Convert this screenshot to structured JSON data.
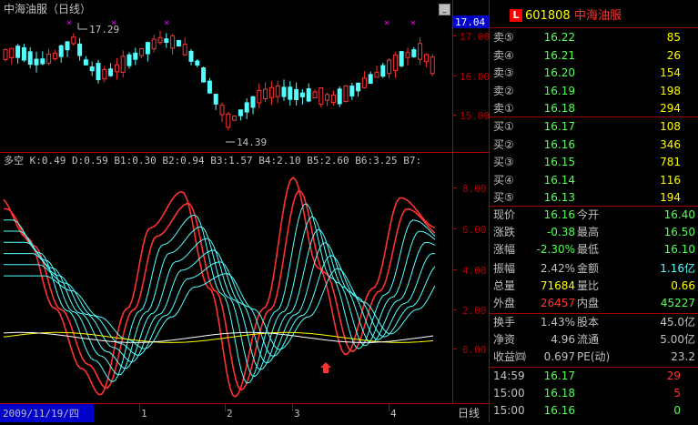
{
  "chart": {
    "title": "中海油服（日线）",
    "current_price_box": "17.04",
    "high_marker": "17.29",
    "low_marker": "14.39",
    "price_ticks": [
      "17.00",
      "16.00",
      "15.00"
    ],
    "indicator_line": "多空 K:0.49 D:0.59 B1:0.30 B2:0.94 B3:1.57 B4:2.10 B5:2.60 B6:3.25 B7:",
    "indicator_ticks": [
      "8.00",
      "6.00",
      "4.00",
      "2.00",
      "0.00"
    ],
    "date_label": "2009/11/19/四",
    "period_label": "日线",
    "month_ticks": [
      "1",
      "2",
      "3",
      "4"
    ],
    "colors": {
      "up": "#ff3232",
      "down": "#54ffff",
      "axis": "#b00000",
      "yellow": "#ffff00",
      "white": "#ffffff",
      "magenta": "#ff00ff",
      "blue": "#0000c8"
    }
  },
  "panel": {
    "logo": "L",
    "code": "601808",
    "name": "中海油服",
    "asks": [
      {
        "label": "卖⑤",
        "price": "16.22",
        "vol": "85"
      },
      {
        "label": "卖④",
        "price": "16.21",
        "vol": "26"
      },
      {
        "label": "卖③",
        "price": "16.20",
        "vol": "154"
      },
      {
        "label": "卖②",
        "price": "16.19",
        "vol": "198"
      },
      {
        "label": "卖①",
        "price": "16.18",
        "vol": "294"
      }
    ],
    "bids": [
      {
        "label": "买①",
        "price": "16.17",
        "vol": "108"
      },
      {
        "label": "买②",
        "price": "16.16",
        "vol": "346"
      },
      {
        "label": "买③",
        "price": "16.15",
        "vol": "781"
      },
      {
        "label": "买④",
        "price": "16.14",
        "vol": "116"
      },
      {
        "label": "买⑤",
        "price": "16.13",
        "vol": "194"
      }
    ],
    "stats": {
      "xj_l": "现价",
      "xj_v": "16.16",
      "jk_l": "今开",
      "jk_v": "16.40",
      "zd_l": "涨跌",
      "zd_v": "-0.38",
      "zg_l": "最高",
      "zg_v": "16.50",
      "zf_l": "涨幅",
      "zf_v": "-2.30%",
      "zdi_l": "最低",
      "zdi_v": "16.10",
      "zhf_l": "振幅",
      "zhf_v": "2.42%",
      "je_l": "金额",
      "je_v": "1.16亿",
      "zl_l": "总量",
      "zl_v": "71684",
      "lb_l": "量比",
      "lb_v": "0.66",
      "wp_l": "外盘",
      "wp_v": "26457",
      "np_l": "内盘",
      "np_v": "45227"
    },
    "fund": {
      "hs_l": "换手",
      "hs_v": "1.43%",
      "gb_l": "股本",
      "gb_v": "45.0亿",
      "jz_l": "净资",
      "jz_v": "4.96",
      "lt_l": "流通",
      "lt_v": "5.00亿",
      "sy_l": "收益㈣",
      "sy_v": "0.697",
      "pe_l": "PE(动)",
      "pe_v": "23.2"
    },
    "ticks": [
      {
        "time": "14:59",
        "price": "16.17",
        "vol": "29"
      },
      {
        "time": "15:00",
        "price": "16.18",
        "vol": "5"
      },
      {
        "time": "15:00",
        "price": "16.16",
        "vol": "0"
      }
    ]
  }
}
